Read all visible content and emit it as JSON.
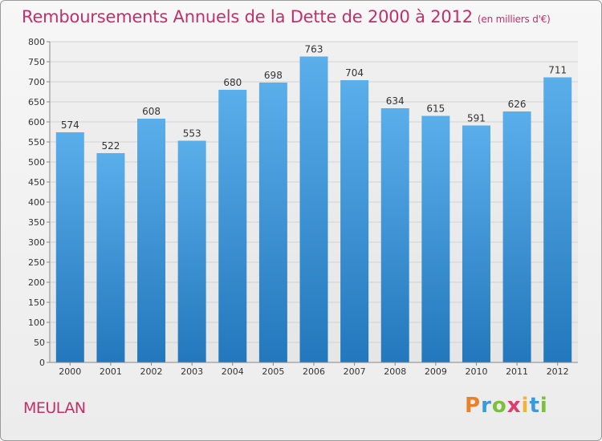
{
  "title": "Remboursements Annuels de la Dette de 2000 à 2012",
  "subtitle": "(en milliers d'€)",
  "commune": "MEULAN",
  "logo": {
    "letters": [
      "P",
      "r",
      "o",
      "x",
      "i",
      "t",
      "i"
    ],
    "colors": [
      "#e8822a",
      "#3b9bd8",
      "#7bbf3a",
      "#e23a6e",
      "#f2b233",
      "#3b9bd8",
      "#7bbf3a"
    ]
  },
  "chart_data": {
    "type": "bar",
    "categories": [
      "2000",
      "2001",
      "2002",
      "2003",
      "2004",
      "2005",
      "2006",
      "2007",
      "2008",
      "2009",
      "2010",
      "2011",
      "2012"
    ],
    "values": [
      574,
      522,
      608,
      553,
      680,
      698,
      763,
      704,
      634,
      615,
      591,
      626,
      711
    ],
    "value_labels": [
      "574",
      "522",
      "608",
      "553",
      "680",
      "698",
      "763",
      "704",
      "634",
      "615",
      "591",
      "626",
      "711"
    ],
    "ylim": [
      0,
      800
    ],
    "yticks": [
      0,
      50,
      100,
      150,
      200,
      250,
      300,
      350,
      400,
      450,
      500,
      550,
      600,
      650,
      700,
      750,
      800
    ],
    "ytick_labels": [
      "0",
      "50",
      "100",
      "150",
      "200",
      "250",
      "300",
      "350",
      "400",
      "450",
      "500",
      "550",
      "600",
      "650",
      "700",
      "750",
      "800"
    ],
    "grid": true,
    "bar_color": "#3a8fd4"
  }
}
